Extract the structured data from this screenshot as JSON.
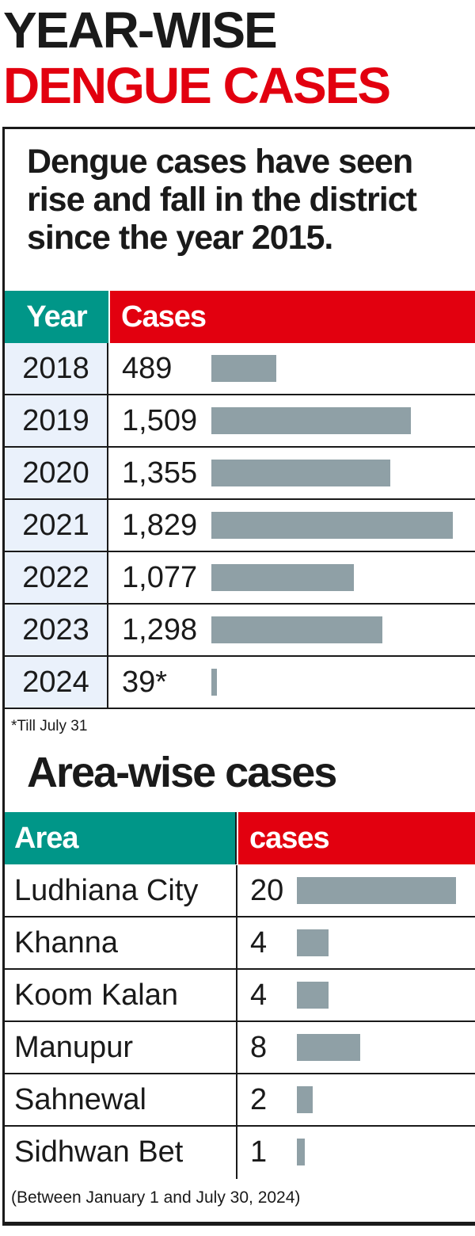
{
  "header": {
    "title_line1": "YEAR-WISE",
    "title_line2": "DENGUE CASES"
  },
  "intro_text": "Dengue cases have seen rise and fall in the district since the year 2015.",
  "year_table": {
    "col_year": "Year",
    "col_cases": "Cases",
    "rows": [
      {
        "year": "2018",
        "cases": "489",
        "value": 489
      },
      {
        "year": "2019",
        "cases": "1,509",
        "value": 1509
      },
      {
        "year": "2020",
        "cases": "1,355",
        "value": 1355
      },
      {
        "year": "2021",
        "cases": "1,829",
        "value": 1829
      },
      {
        "year": "2022",
        "cases": "1,077",
        "value": 1077
      },
      {
        "year": "2023",
        "cases": "1,298",
        "value": 1298
      },
      {
        "year": "2024",
        "cases": "39*",
        "value": 39
      }
    ],
    "footnote": "*Till July 31"
  },
  "area_section": {
    "title": "Area-wise cases",
    "col_area": "Area",
    "col_cases": "cases",
    "rows": [
      {
        "area": "Ludhiana City",
        "cases": "20",
        "value": 20
      },
      {
        "area": "Khanna",
        "cases": "4",
        "value": 4
      },
      {
        "area": "Koom Kalan",
        "cases": "4",
        "value": 4
      },
      {
        "area": "Manupur",
        "cases": "8",
        "value": 8
      },
      {
        "area": "Sahnewal",
        "cases": "2",
        "value": 2
      },
      {
        "area": "Sidhwan Bet",
        "cases": "1",
        "value": 1
      }
    ],
    "footnote": "(Between January 1 and July 30, 2024)"
  },
  "colors": {
    "title_black": "#1a1a1a",
    "title_red": "#e2000f",
    "header_teal": "#009688",
    "header_red": "#e2000f",
    "bar_gray": "#8fa0a6",
    "year_cell_bg": "#eaf1fb"
  },
  "chart_data": [
    {
      "type": "bar",
      "orientation": "horizontal",
      "title": "YEAR-WISE DENGUE CASES",
      "subtitle": "Dengue cases have seen rise and fall in the district since the year 2015.",
      "categories": [
        "2018",
        "2019",
        "2020",
        "2021",
        "2022",
        "2023",
        "2024"
      ],
      "values": [
        489,
        1509,
        1355,
        1829,
        1077,
        1298,
        39
      ],
      "xlabel": "Cases",
      "ylabel": "Year",
      "annotations": [
        "*Till July 31"
      ],
      "grid": false,
      "legend": null
    },
    {
      "type": "bar",
      "orientation": "horizontal",
      "title": "Area-wise cases",
      "categories": [
        "Ludhiana City",
        "Khanna",
        "Koom Kalan",
        "Manupur",
        "Sahnewal",
        "Sidhwan Bet"
      ],
      "values": [
        20,
        4,
        4,
        8,
        2,
        1
      ],
      "xlabel": "cases",
      "ylabel": "Area",
      "annotations": [
        "(Between January 1 and July 30, 2024)"
      ],
      "grid": false,
      "legend": null
    }
  ]
}
